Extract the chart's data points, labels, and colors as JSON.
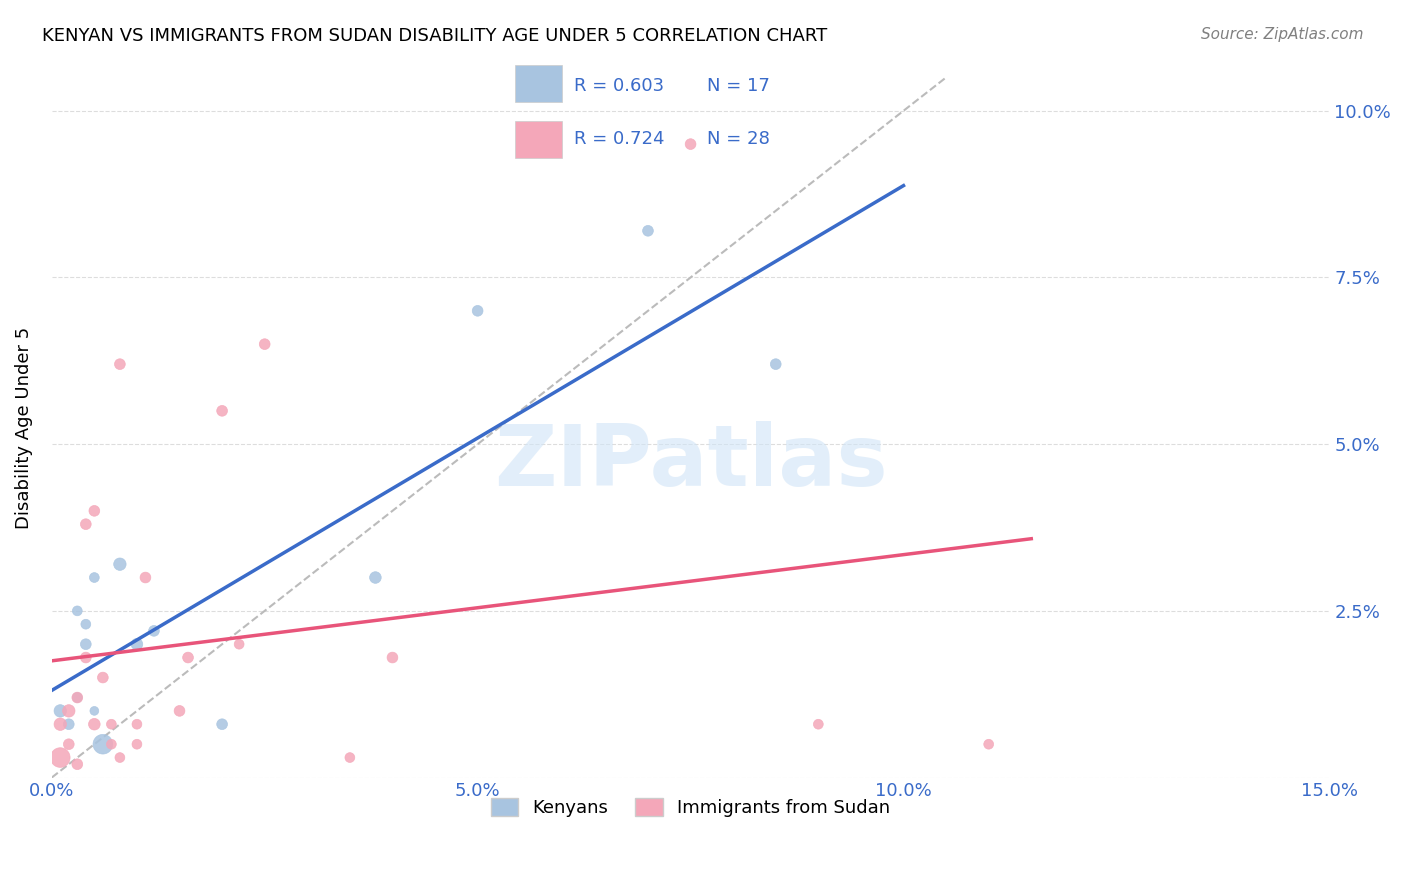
{
  "title": "KENYAN VS IMMIGRANTS FROM SUDAN DISABILITY AGE UNDER 5 CORRELATION CHART",
  "source": "Source: ZipAtlas.com",
  "xlabel": "",
  "ylabel": "Disability Age Under 5",
  "xlim": [
    0.0,
    0.15
  ],
  "ylim": [
    0.0,
    0.105
  ],
  "xticks": [
    0.0,
    0.025,
    0.05,
    0.075,
    0.1,
    0.125,
    0.15
  ],
  "xticklabels": [
    "0.0%",
    "",
    "5.0%",
    "",
    "10.0%",
    "",
    "15.0%"
  ],
  "yticks": [
    0.0,
    0.025,
    0.05,
    0.075,
    0.1
  ],
  "yticklabels": [
    "",
    "2.5%",
    "5.0%",
    "7.5%",
    "10.0%"
  ],
  "kenyan_color": "#a8c4e0",
  "sudan_color": "#f4a7b9",
  "kenyan_line_color": "#3a6bc9",
  "sudan_line_color": "#e8547a",
  "ref_line_color": "#bbbbbb",
  "legend_R_kenyan": "R = 0.603",
  "legend_N_kenyan": "N = 17",
  "legend_R_sudan": "R = 0.724",
  "legend_N_sudan": "N = 28",
  "watermark": "ZIPatlas",
  "kenyan_x": [
    0.001,
    0.002,
    0.003,
    0.003,
    0.004,
    0.004,
    0.005,
    0.005,
    0.006,
    0.008,
    0.01,
    0.012,
    0.02,
    0.038,
    0.05,
    0.07,
    0.085
  ],
  "kenyan_y": [
    0.01,
    0.008,
    0.012,
    0.025,
    0.02,
    0.023,
    0.03,
    0.01,
    0.005,
    0.032,
    0.02,
    0.022,
    0.008,
    0.03,
    0.07,
    0.082,
    0.062
  ],
  "kenyan_sizes": [
    80,
    60,
    50,
    50,
    60,
    50,
    50,
    40,
    200,
    80,
    70,
    60,
    60,
    70,
    60,
    60,
    60
  ],
  "sudan_x": [
    0.001,
    0.001,
    0.002,
    0.002,
    0.003,
    0.003,
    0.004,
    0.004,
    0.005,
    0.005,
    0.006,
    0.007,
    0.007,
    0.008,
    0.008,
    0.01,
    0.01,
    0.011,
    0.015,
    0.016,
    0.02,
    0.022,
    0.025,
    0.035,
    0.04,
    0.075,
    0.09,
    0.11
  ],
  "sudan_y": [
    0.003,
    0.008,
    0.005,
    0.01,
    0.002,
    0.012,
    0.018,
    0.038,
    0.008,
    0.04,
    0.015,
    0.005,
    0.008,
    0.003,
    0.062,
    0.005,
    0.008,
    0.03,
    0.01,
    0.018,
    0.055,
    0.02,
    0.065,
    0.003,
    0.018,
    0.095,
    0.008,
    0.005
  ],
  "sudan_sizes": [
    200,
    80,
    60,
    80,
    60,
    60,
    60,
    60,
    70,
    60,
    60,
    50,
    50,
    50,
    60,
    50,
    50,
    60,
    60,
    60,
    60,
    50,
    60,
    50,
    60,
    60,
    50,
    50
  ]
}
